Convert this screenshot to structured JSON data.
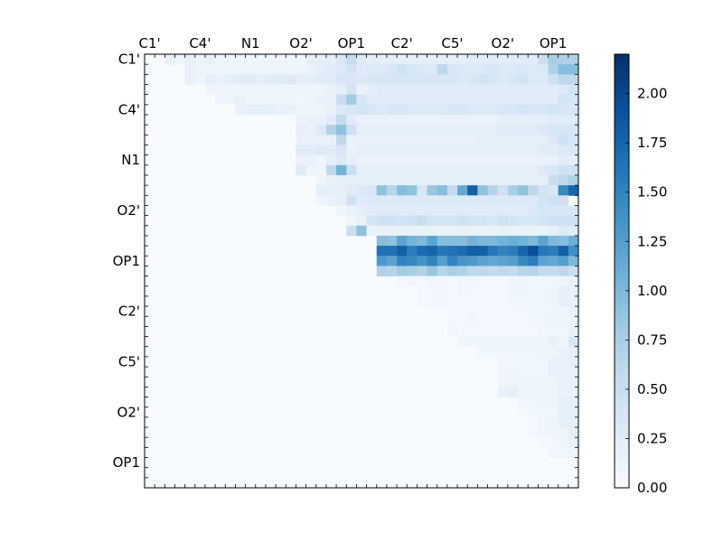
{
  "chart_data": {
    "type": "heatmap",
    "title": "",
    "xlabel": "",
    "ylabel": "",
    "grid": false,
    "n": 43,
    "tick_labels": [
      "C1'",
      "C4'",
      "N1",
      "O2'",
      "OP1",
      "C2'",
      "C5'",
      "O2'",
      "OP1"
    ],
    "tick_positions": [
      0.5,
      5.5,
      10.5,
      15.5,
      20.5,
      25.5,
      30.5,
      35.5,
      40.5
    ],
    "x_tick_labels": [
      "C1'",
      "C4'",
      "N1",
      "O2'",
      "OP1",
      "C2'",
      "C5'",
      "O2'",
      "OP1"
    ],
    "y_tick_labels": [
      "C1'",
      "C4'",
      "N1",
      "O2'",
      "OP1",
      "C2'",
      "C5'",
      "O2'",
      "OP1"
    ],
    "value_range": [
      0.0,
      2.2
    ],
    "colormap": "Blues",
    "colors": {
      "low": "#f7fbff",
      "high": "#08306b"
    },
    "colorbar": {
      "ticks": [
        0.0,
        0.25,
        0.5,
        0.75,
        1.0,
        1.25,
        1.5,
        1.75,
        2.0
      ],
      "tick_labels": [
        "0.00",
        "0.25",
        "0.50",
        "0.75",
        "1.00",
        "1.25",
        "1.50",
        "1.75",
        "2.00"
      ]
    },
    "matrix_note": "upper-triangular matrix; rows listed sparsely as [row, start_col, values...]",
    "rows": [
      [
        0,
        2,
        [
          0.18,
          0.12,
          0.18,
          0.12,
          0.18,
          0.1,
          0.1,
          0.1,
          0.1,
          0.1,
          0.1,
          0.1,
          0.1,
          0.1,
          0.2,
          0.2,
          0.2,
          0.35,
          0.55,
          0.3,
          0.2,
          0.2,
          0.2,
          0.2,
          0.2,
          0.2,
          0.2,
          0.2,
          0.2,
          0.2,
          0.25,
          0.25,
          0.25,
          0.25,
          0.25,
          0.25,
          0.25,
          0.5,
          0.75,
          0.7,
          0.7
        ]
      ],
      [
        1,
        4,
        [
          0.15,
          0.12,
          0.12,
          0.12,
          0.12,
          0.12,
          0.12,
          0.12,
          0.12,
          0.12,
          0.12,
          0.12,
          0.15,
          0.2,
          0.25,
          0.3,
          0.4,
          0.25,
          0.3,
          0.3,
          0.35,
          0.45,
          0.35,
          0.3,
          0.3,
          0.6,
          0.35,
          0.3,
          0.3,
          0.3,
          0.35,
          0.3,
          0.3,
          0.35,
          0.3,
          0.3,
          0.7,
          0.95,
          0.95
        ]
      ],
      [
        2,
        4,
        [
          0.15,
          0.1,
          0.2,
          0.15,
          0.2,
          0.25,
          0.25,
          0.2,
          0.25,
          0.25,
          0.3,
          0.2,
          0.2,
          0.25,
          0.25,
          0.35,
          0.35,
          0.3,
          0.35,
          0.35,
          0.35,
          0.35,
          0.35,
          0.35,
          0.35,
          0.35,
          0.35,
          0.3,
          0.35,
          0.4,
          0.35,
          0.3,
          0.35,
          0.4,
          0.3,
          0.3,
          0.45,
          0.6,
          0.6
        ]
      ],
      [
        3,
        6,
        [
          0.1,
          0.1,
          0.1,
          0.1,
          0.1,
          0.1,
          0.1,
          0.1,
          0.1,
          0.1,
          0.1,
          0.1,
          0.15,
          0.2,
          0.4,
          0.15,
          0.2,
          0.25,
          0.25,
          0.25,
          0.25,
          0.25,
          0.25,
          0.25,
          0.25,
          0.25,
          0.25,
          0.25,
          0.25,
          0.25,
          0.25,
          0.25,
          0.25,
          0.25,
          0.25,
          0.3,
          0.4,
          0.35
        ]
      ],
      [
        4,
        7,
        [
          0.1,
          0.1,
          0.18,
          0.1,
          0.1,
          0.12,
          0.12,
          0.1,
          0.08,
          0.1,
          0.15,
          0.15,
          0.5,
          0.8,
          0.35,
          0.25,
          0.25,
          0.25,
          0.25,
          0.25,
          0.25,
          0.25,
          0.25,
          0.25,
          0.25,
          0.25,
          0.25,
          0.25,
          0.25,
          0.25,
          0.25,
          0.25,
          0.25,
          0.25,
          0.4,
          0.35
        ]
      ],
      [
        5,
        9,
        [
          0.15,
          0.2,
          0.2,
          0.2,
          0.15,
          0.15,
          0.1,
          0.1,
          0.1,
          0.15,
          0.3,
          0.35,
          0.4,
          0.35,
          0.3,
          0.35,
          0.35,
          0.3,
          0.3,
          0.3,
          0.3,
          0.35,
          0.35,
          0.3,
          0.3,
          0.3,
          0.35,
          0.35,
          0.4,
          0.35,
          0.35,
          0.4,
          0.35,
          0.35
        ]
      ],
      [
        6,
        15,
        [
          0.15,
          0.15,
          0.15,
          0.25,
          0.55,
          0.25,
          0.15,
          0.15,
          0.15,
          0.15,
          0.15,
          0.15,
          0.15,
          0.15,
          0.15,
          0.15,
          0.15,
          0.15,
          0.15,
          0.15,
          0.2,
          0.2,
          0.2,
          0.2,
          0.2,
          0.25,
          0.25,
          0.25
        ]
      ],
      [
        7,
        15,
        [
          0.2,
          0.15,
          0.3,
          0.7,
          0.9,
          0.45,
          0.2,
          0.2,
          0.2,
          0.2,
          0.2,
          0.2,
          0.2,
          0.2,
          0.2,
          0.2,
          0.2,
          0.2,
          0.2,
          0.2,
          0.25,
          0.25,
          0.25,
          0.25,
          0.3,
          0.35,
          0.35,
          0.35
        ]
      ],
      [
        8,
        15,
        [
          0.15,
          0.15,
          0.15,
          0.15,
          0.6,
          0.15,
          0.15,
          0.15,
          0.15,
          0.15,
          0.15,
          0.15,
          0.15,
          0.15,
          0.15,
          0.15,
          0.15,
          0.15,
          0.2,
          0.2,
          0.2,
          0.2,
          0.2,
          0.2,
          0.2,
          0.3,
          0.45,
          0.35
        ]
      ],
      [
        9,
        15,
        [
          0.25,
          0.25,
          0.3,
          0.25,
          0.35,
          0.15,
          0.2,
          0.2,
          0.2,
          0.2,
          0.2,
          0.2,
          0.2,
          0.2,
          0.2,
          0.2,
          0.2,
          0.2,
          0.2,
          0.2,
          0.2,
          0.2,
          0.2,
          0.2,
          0.25,
          0.25,
          0.3,
          0.3
        ]
      ],
      [
        10,
        15,
        [
          0.15,
          0.15,
          0.1,
          0.2,
          0.3,
          0.2,
          0.15,
          0.15,
          0.15,
          0.15,
          0.15,
          0.15,
          0.15,
          0.15,
          0.15,
          0.15,
          0.15,
          0.15,
          0.15,
          0.15,
          0.15,
          0.15,
          0.15,
          0.15,
          0.15,
          0.15,
          0.25,
          0.2
        ]
      ],
      [
        11,
        15,
        [
          0.25,
          0.1,
          0.1,
          0.6,
          1.05,
          0.5,
          0.2,
          0.2,
          0.2,
          0.2,
          0.2,
          0.2,
          0.2,
          0.2,
          0.2,
          0.2,
          0.2,
          0.2,
          0.2,
          0.2,
          0.2,
          0.2,
          0.2,
          0.2,
          0.3,
          0.35,
          0.45,
          0.45
        ]
      ],
      [
        12,
        17,
        [
          0.1,
          0.15,
          0.2,
          0.2,
          0.2,
          0.2,
          0.2,
          0.2,
          0.2,
          0.2,
          0.2,
          0.2,
          0.2,
          0.2,
          0.2,
          0.2,
          0.2,
          0.2,
          0.2,
          0.2,
          0.2,
          0.2,
          0.2,
          0.5,
          0.6,
          0.7
        ]
      ],
      [
        13,
        17,
        [
          0.2,
          0.2,
          0.2,
          0.25,
          0.3,
          0.35,
          0.9,
          0.65,
          0.95,
          0.9,
          0.35,
          0.85,
          0.95,
          0.55,
          1.15,
          1.8,
          0.9,
          0.65,
          0.45,
          0.75,
          0.9,
          0.6,
          0.4,
          0.35,
          1.45,
          1.75,
          2.05,
          2.2
        ]
      ],
      [
        14,
        17,
        [
          0.1,
          0.15,
          0.2,
          0.45,
          0.25,
          0.3,
          0.3,
          0.3,
          0.3,
          0.3,
          0.3,
          0.3,
          0.3,
          0.3,
          0.3,
          0.3,
          0.3,
          0.3,
          0.3,
          0.3,
          0.3,
          0.3,
          0.4,
          0.45,
          0.45
        ]
      ],
      [
        15,
        19,
        [
          0.1,
          0.15,
          0.2,
          0.25,
          0.25,
          0.25,
          0.25,
          0.25,
          0.25,
          0.25,
          0.25,
          0.25,
          0.25,
          0.25,
          0.25,
          0.25,
          0.25,
          0.25,
          0.25,
          0.3,
          0.35,
          0.35,
          0.35,
          0.35
        ]
      ],
      [
        16,
        20,
        [
          0.1,
          0.15,
          0.4,
          0.45,
          0.45,
          0.4,
          0.45,
          0.5,
          0.4,
          0.4,
          0.4,
          0.45,
          0.4,
          0.4,
          0.35,
          0.45,
          0.4,
          0.35,
          0.35,
          0.4,
          0.45,
          0.45,
          0.45
        ]
      ],
      [
        17,
        20,
        [
          0.5,
          0.9,
          0.15,
          0.15,
          0.15,
          0.15,
          0.15,
          0.15,
          0.15,
          0.15,
          0.15,
          0.15,
          0.15,
          0.15,
          0.15,
          0.15,
          0.15,
          0.15,
          0.15,
          0.15,
          0.2,
          0.3,
          0.25
        ]
      ],
      [
        18,
        23,
        [
          0.95,
          0.9,
          1.2,
          1.05,
          1.0,
          1.2,
          0.95,
          0.95,
          0.95,
          1.05,
          1.0,
          1.0,
          1.05,
          1.1,
          1.05,
          1.0,
          1.2,
          1.0,
          0.95,
          1.1,
          0.9,
          0.95,
          0.8
        ]
      ],
      [
        19,
        23,
        [
          1.65,
          1.65,
          1.8,
          1.55,
          1.7,
          1.75,
          1.6,
          1.65,
          1.7,
          1.8,
          1.8,
          1.6,
          1.5,
          1.55,
          1.75,
          1.95,
          1.6,
          1.55,
          1.8,
          1.4,
          1.45,
          1.2,
          1.1
        ]
      ],
      [
        20,
        23,
        [
          1.3,
          1.2,
          1.5,
          1.45,
          1.35,
          1.5,
          1.25,
          1.5,
          1.35,
          1.3,
          1.2,
          1.15,
          1.2,
          1.25,
          1.45,
          1.55,
          1.2,
          1.15,
          1.25,
          1.0,
          1.05,
          0.9,
          0.8
        ]
      ],
      [
        21,
        23,
        [
          0.7,
          0.65,
          0.8,
          0.75,
          0.7,
          0.85,
          0.65,
          0.75,
          0.7,
          0.6,
          0.6,
          0.55,
          0.6,
          0.55,
          0.65,
          0.65,
          0.55,
          0.55,
          0.6,
          0.5,
          0.5,
          0.5,
          0.4
        ]
      ],
      [
        22,
        25,
        [
          0.05,
          0.08,
          0.06,
          0.08,
          0.08,
          0.06,
          0.08,
          0.08,
          0.06,
          0.06,
          0.06,
          0.08,
          0.1,
          0.08,
          0.08,
          0.08,
          0.1,
          0.15,
          0.15,
          0.3
        ]
      ],
      [
        23,
        27,
        [
          0.05,
          0.06,
          0.08,
          0.06,
          0.08,
          0.06,
          0.06,
          0.06,
          0.06,
          0.08,
          0.1,
          0.08,
          0.08,
          0.1,
          0.2,
          0.15,
          0.25,
          0.2
        ]
      ],
      [
        24,
        27,
        [
          0.06,
          0.06,
          0.08,
          0.06,
          0.06,
          0.06,
          0.06,
          0.06,
          0.06,
          0.08,
          0.08,
          0.08,
          0.08,
          0.1,
          0.2,
          0.15,
          0.25,
          0.2
        ]
      ],
      [
        25,
        30,
        [
          0.06,
          0.06,
          0.06,
          0.06,
          0.06,
          0.06,
          0.06,
          0.06,
          0.08,
          0.08,
          0.08,
          0.1,
          0.15,
          0.2,
          0.15,
          0.25
        ]
      ],
      [
        26,
        30,
        [
          0.06,
          0.06,
          0.08,
          0.06,
          0.06,
          0.06,
          0.06,
          0.06,
          0.08,
          0.08,
          0.1,
          0.1,
          0.15,
          0.15,
          0.2,
          0.25
        ]
      ],
      [
        27,
        30,
        [
          0.08,
          0.06,
          0.06,
          0.06,
          0.06,
          0.06,
          0.06,
          0.06,
          0.06,
          0.08,
          0.08,
          0.08,
          0.15,
          0.15,
          0.2,
          0.2
        ]
      ],
      [
        28,
        31,
        [
          0.1,
          0.1,
          0.1,
          0.12,
          0.12,
          0.12,
          0.12,
          0.1,
          0.1,
          0.15,
          0.1,
          0.35,
          0.35,
          0.45,
          0.35
        ]
      ],
      [
        29,
        33,
        [
          0.08,
          0.08,
          0.08,
          0.08,
          0.08,
          0.08,
          0.1,
          0.1,
          0.15,
          0.2,
          0.2,
          0.2,
          0.2
        ]
      ],
      [
        30,
        35,
        [
          0.08,
          0.08,
          0.08,
          0.08,
          0.08,
          0.15,
          0.15,
          0.2,
          0.2,
          0.25
        ]
      ],
      [
        31,
        35,
        [
          0.08,
          0.1,
          0.08,
          0.08,
          0.08,
          0.15,
          0.15,
          0.15,
          0.15,
          0.2
        ]
      ],
      [
        32,
        35,
        [
          0.1,
          0.1,
          0.1,
          0.1,
          0.1,
          0.1,
          0.15,
          0.15,
          0.15,
          0.25
        ]
      ],
      [
        33,
        35,
        [
          0.15,
          0.2,
          0.1,
          0.1,
          0.1,
          0.1,
          0.15,
          0.15,
          0.15,
          0.2
        ]
      ],
      [
        34,
        37,
        [
          0.08,
          0.08,
          0.1,
          0.1,
          0.2,
          0.2,
          0.2,
          0.2
        ]
      ],
      [
        35,
        37,
        [
          0.06,
          0.08,
          0.08,
          0.08,
          0.2,
          0.2,
          0.2,
          0.2
        ]
      ],
      [
        36,
        38,
        [
          0.06,
          0.1,
          0.1,
          0.2,
          0.2,
          0.25,
          0.2
        ]
      ],
      [
        37,
        38,
        [
          0.06,
          0.08,
          0.1,
          0.1,
          0.2,
          0.25,
          0.2
        ]
      ],
      [
        38,
        39,
        [
          0.06,
          0.06,
          0.1,
          0.15,
          0.15,
          0.15
        ]
      ],
      [
        39,
        40,
        [
          0.08,
          0.08,
          0.08,
          0.08
        ]
      ]
    ]
  }
}
